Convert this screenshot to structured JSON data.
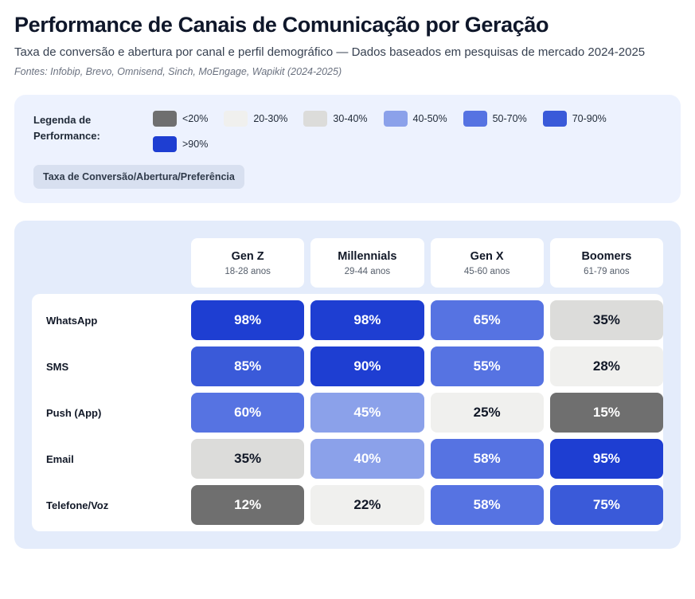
{
  "header": {
    "title": "Performance de Canais de Comunicação por Geração",
    "subtitle": "Taxa de conversão e abertura por canal e perfil demográfico — Dados baseados em pesquisas de mercado 2024-2025",
    "sources": "Fontes: Infobip, Brevo, Omnisend, Sinch, MoEngage, Wapikit (2024-2025)"
  },
  "legend": {
    "label": "Legenda de Performance:",
    "items": [
      {
        "label": "<20%",
        "color": "#6f6f6f",
        "text": "#ffffff"
      },
      {
        "label": "20-30%",
        "color": "#f0f0ee",
        "text": "#111827"
      },
      {
        "label": "30-40%",
        "color": "#dcdcda",
        "text": "#111827"
      },
      {
        "label": "40-50%",
        "color": "#8ba1ea",
        "text": "#ffffff"
      },
      {
        "label": "50-70%",
        "color": "#5673e2",
        "text": "#ffffff"
      },
      {
        "label": "70-90%",
        "color": "#3a5ad9",
        "text": "#ffffff"
      },
      {
        "label": ">90%",
        "color": "#1e3ed2",
        "text": "#ffffff"
      }
    ],
    "badge": "Taxa de Conversão/Abertura/Preferência"
  },
  "chart_data": {
    "type": "heatmap",
    "title": "Performance de Canais de Comunicação por Geração",
    "unit": "%",
    "columns": [
      {
        "name": "Gen Z",
        "sub": "18-28 anos"
      },
      {
        "name": "Millennials",
        "sub": "29-44 anos"
      },
      {
        "name": "Gen X",
        "sub": "45-60 anos"
      },
      {
        "name": "Boomers",
        "sub": "61-79 anos"
      }
    ],
    "rows": [
      {
        "label": "WhatsApp",
        "values": [
          98,
          98,
          65,
          35
        ]
      },
      {
        "label": "SMS",
        "values": [
          85,
          90,
          55,
          28
        ]
      },
      {
        "label": "Push (App)",
        "values": [
          60,
          45,
          25,
          15
        ]
      },
      {
        "label": "Email",
        "values": [
          35,
          40,
          58,
          95
        ]
      },
      {
        "label": "Telefone/Voz",
        "values": [
          12,
          22,
          58,
          75
        ]
      }
    ],
    "scale_buckets": [
      "<20",
      "20-30",
      "30-40",
      "40-50",
      "50-70",
      "70-90",
      ">90"
    ],
    "legend_position": "top"
  }
}
